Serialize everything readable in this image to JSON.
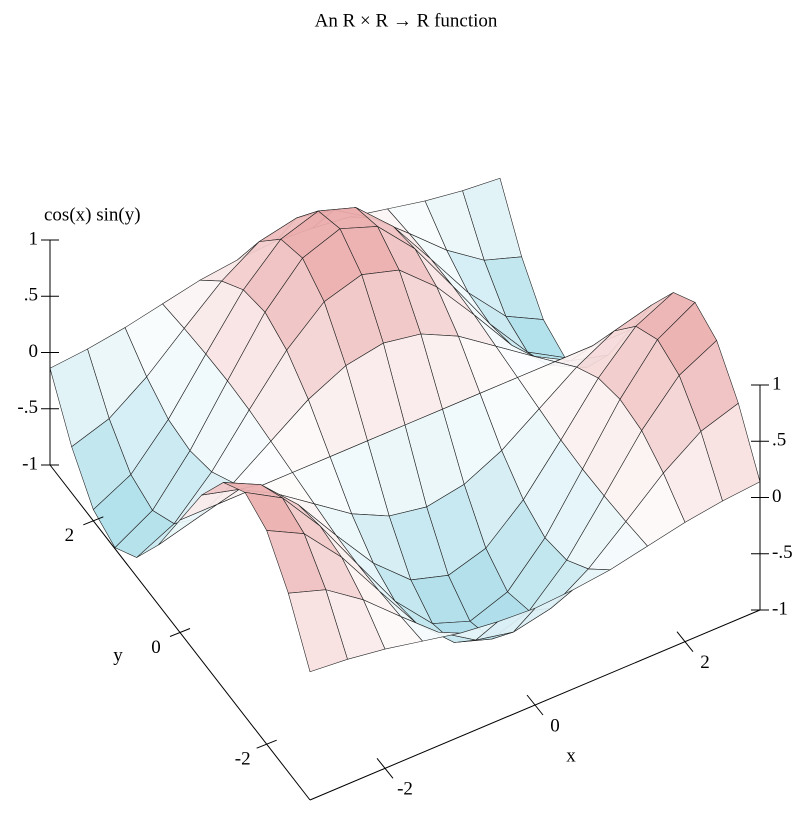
{
  "chart_data": {
    "type": "surface3d",
    "title": "An R × R → R function",
    "xlabel": "x",
    "ylabel": "y",
    "zlabel": "cos(x) sin(y)",
    "x": [
      -3,
      -2.5,
      -2,
      -1.5,
      -1,
      -0.5,
      0,
      0.5,
      1,
      1.5,
      2,
      2.5,
      3
    ],
    "y": [
      -3,
      -2.5,
      -2,
      -1.5,
      -1,
      -0.5,
      0,
      0.5,
      1,
      1.5,
      2,
      2.5,
      3
    ],
    "z": [
      [
        0.14,
        0.11,
        0.06,
        -0.01,
        -0.08,
        -0.12,
        -0.14,
        -0.12,
        -0.08,
        -0.01,
        0.06,
        0.11,
        0.14
      ],
      [
        0.59,
        0.48,
        0.25,
        -0.04,
        -0.32,
        -0.53,
        -0.6,
        -0.53,
        -0.32,
        -0.04,
        0.25,
        0.48,
        0.59
      ],
      [
        0.9,
        0.73,
        0.38,
        -0.06,
        -0.49,
        -0.8,
        -0.91,
        -0.8,
        -0.49,
        -0.06,
        0.38,
        0.73,
        0.9
      ],
      [
        0.99,
        0.8,
        0.41,
        -0.07,
        -0.54,
        -0.88,
        -1.0,
        -0.88,
        -0.54,
        -0.07,
        0.41,
        0.8,
        0.99
      ],
      [
        0.83,
        0.67,
        0.35,
        -0.06,
        -0.45,
        -0.74,
        -0.84,
        -0.74,
        -0.45,
        -0.06,
        0.35,
        0.67,
        0.83
      ],
      [
        0.47,
        0.38,
        0.2,
        -0.03,
        -0.26,
        -0.42,
        -0.48,
        -0.42,
        -0.26,
        -0.03,
        0.2,
        0.38,
        0.47
      ],
      [
        0,
        0,
        0,
        0,
        0,
        0,
        0,
        0,
        0,
        0,
        0,
        0,
        0
      ],
      [
        -0.47,
        -0.38,
        -0.2,
        0.03,
        0.26,
        0.42,
        0.48,
        0.42,
        0.26,
        0.03,
        -0.2,
        -0.38,
        -0.47
      ],
      [
        -0.83,
        -0.67,
        -0.35,
        0.06,
        0.45,
        0.74,
        0.84,
        0.74,
        0.45,
        0.06,
        -0.35,
        -0.67,
        -0.83
      ],
      [
        -0.99,
        -0.8,
        -0.41,
        0.07,
        0.54,
        0.88,
        1.0,
        0.88,
        0.54,
        0.07,
        -0.41,
        -0.8,
        -0.99
      ],
      [
        -0.9,
        -0.73,
        -0.38,
        0.06,
        0.49,
        0.8,
        0.91,
        0.8,
        0.49,
        0.06,
        -0.38,
        -0.73,
        -0.9
      ],
      [
        -0.59,
        -0.48,
        -0.25,
        0.04,
        0.32,
        0.53,
        0.6,
        0.53,
        0.32,
        0.04,
        -0.25,
        -0.48,
        -0.59
      ],
      [
        -0.14,
        -0.11,
        -0.06,
        0.01,
        0.08,
        0.12,
        0.14,
        0.12,
        0.08,
        0.01,
        -0.06,
        -0.11,
        -0.14
      ]
    ],
    "xlim": [
      -3,
      3
    ],
    "ylim": [
      -3,
      3
    ],
    "zlim": [
      -1,
      1
    ],
    "xticks": [
      -2,
      0,
      2
    ],
    "yticks": [
      -2,
      0,
      2
    ],
    "zticks": [
      {
        "value": -1,
        "label": "-1"
      },
      {
        "value": -0.5,
        "label": "-.5"
      },
      0,
      {
        "value": 0.5,
        "label": ".5"
      },
      1
    ],
    "colors": {
      "negative": "#9fd8e6",
      "zero": "#ffffff",
      "positive": "#e8a0a0"
    },
    "line_color": "#222222"
  }
}
